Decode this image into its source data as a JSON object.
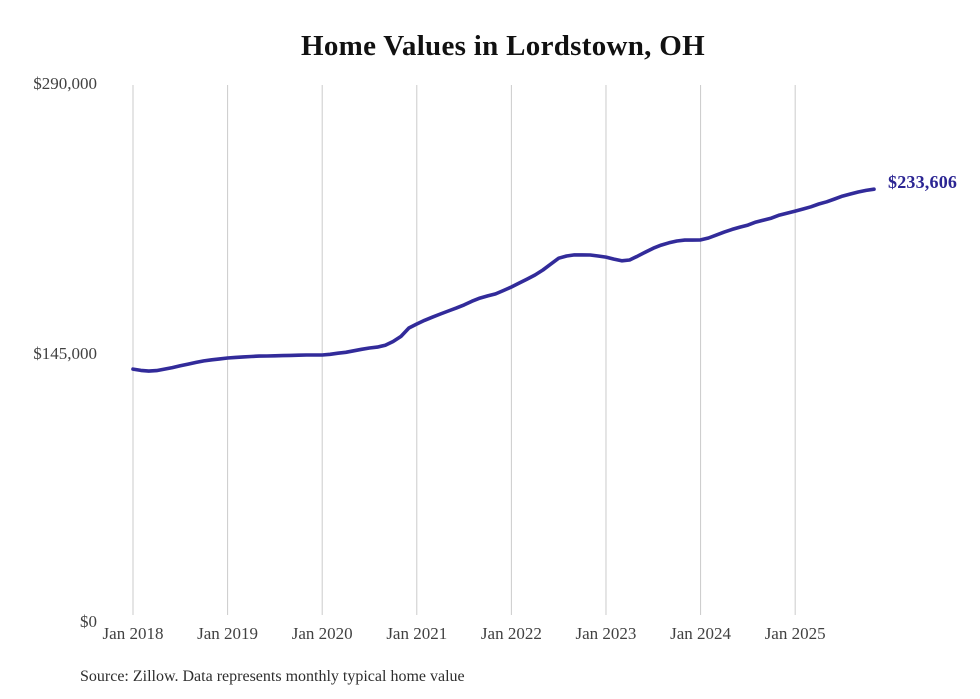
{
  "chart_data": {
    "type": "line",
    "title": "Home Values in Lordstown, OH",
    "source_note": "Source: Zillow. Data represents monthly typical home value",
    "end_label": "$233,606",
    "last_value": 233606,
    "y_axis": {
      "min": 0,
      "max": 290000,
      "ticks": [
        290000,
        145000,
        0
      ]
    },
    "y_tick_labels": [
      "$290,000",
      "$145,000",
      "$0"
    ],
    "x_tick_labels": [
      "Jan 2018",
      "Jan 2019",
      "Jan 2020",
      "Jan 2021",
      "Jan 2022",
      "Jan 2023",
      "Jan 2024",
      "Jan 2025"
    ],
    "grid": "vertical-only",
    "legend": "none",
    "line_color": "#322b9a",
    "end_label_color": "#2b2593",
    "gridline_color": "#cbcbcb",
    "start_month": "2018-01",
    "end_month": "2025-11",
    "series": [
      {
        "name": "Typical home value (USD)",
        "values": [
          136300,
          135600,
          135200,
          135500,
          136300,
          137100,
          138100,
          139000,
          139900,
          140700,
          141300,
          141800,
          142300,
          142600,
          142900,
          143100,
          143300,
          143400,
          143500,
          143600,
          143700,
          143800,
          143900,
          143900,
          143900,
          144300,
          144900,
          145400,
          146200,
          147000,
          147700,
          148200,
          149200,
          151200,
          154000,
          158500,
          160700,
          162700,
          164400,
          166100,
          167700,
          169300,
          171000,
          173000,
          174700,
          175900,
          177000,
          178800,
          180700,
          182900,
          185000,
          187200,
          189900,
          193100,
          196300,
          197500,
          198100,
          198100,
          198000,
          197500,
          196900,
          195800,
          194900,
          195300,
          197400,
          199600,
          201700,
          203400,
          204600,
          205600,
          206100,
          206100,
          206200,
          207200,
          208800,
          210400,
          211900,
          213100,
          214200,
          215800,
          216900,
          218000,
          219600,
          220700,
          221800,
          222900,
          224100,
          225600,
          226800,
          228300,
          229900,
          231000,
          232100,
          233000,
          233606
        ]
      }
    ]
  }
}
